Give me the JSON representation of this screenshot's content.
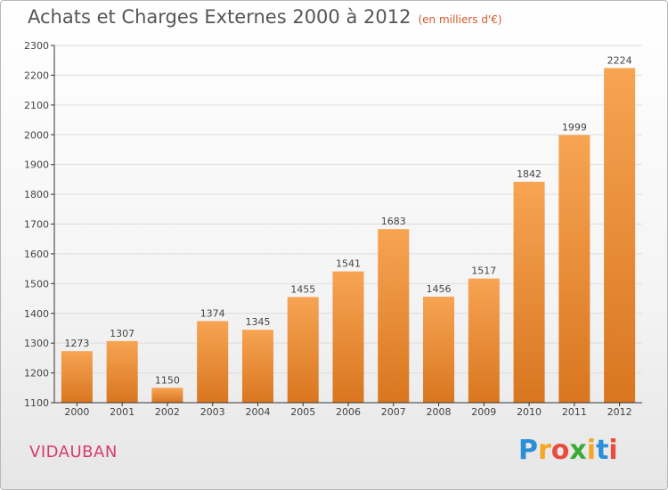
{
  "header": {
    "title": "Achats et Charges Externes 2000 à 2012",
    "unit": "(en milliers d'€)"
  },
  "footer": {
    "town": "VIDAUBAN",
    "logo_text": "Proxiti",
    "logo_letters": [
      "P",
      "r",
      "o",
      "x",
      "i",
      "t",
      "i"
    ],
    "logo_colors": [
      "#2a8fd6",
      "#f5a623",
      "#e84c3d",
      "#3aaa35",
      "#f5a623",
      "#2a8fd6",
      "#e84c3d"
    ]
  },
  "chart_data": {
    "type": "bar",
    "title": "Achats et Charges Externes 2000 à 2012",
    "subtitle": "(en milliers d'€)",
    "xlabel": "",
    "ylabel": "",
    "categories": [
      "2000",
      "2001",
      "2002",
      "2003",
      "2004",
      "2005",
      "2006",
      "2007",
      "2008",
      "2009",
      "2010",
      "2011",
      "2012"
    ],
    "values": [
      1273,
      1307,
      1150,
      1374,
      1345,
      1455,
      1541,
      1683,
      1456,
      1517,
      1842,
      1999,
      2224
    ],
    "ylim": [
      1100,
      2300
    ],
    "yticks": [
      1100,
      1200,
      1300,
      1400,
      1500,
      1600,
      1700,
      1800,
      1900,
      2000,
      2100,
      2200,
      2300
    ],
    "grid": true,
    "bar_color_top": "#f7a453",
    "bar_color_bottom": "#d9761f",
    "axis_color": "#333333",
    "grid_color": "#dddddd"
  }
}
